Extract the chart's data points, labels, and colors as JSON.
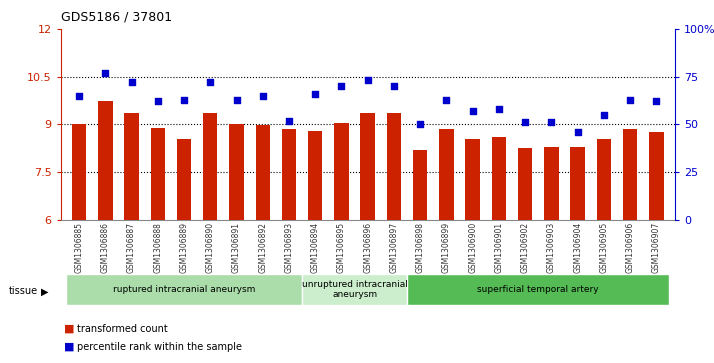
{
  "title": "GDS5186 / 37801",
  "samples": [
    "GSM1306885",
    "GSM1306886",
    "GSM1306887",
    "GSM1306888",
    "GSM1306889",
    "GSM1306890",
    "GSM1306891",
    "GSM1306892",
    "GSM1306893",
    "GSM1306894",
    "GSM1306895",
    "GSM1306896",
    "GSM1306897",
    "GSM1306898",
    "GSM1306899",
    "GSM1306900",
    "GSM1306901",
    "GSM1306902",
    "GSM1306903",
    "GSM1306904",
    "GSM1306905",
    "GSM1306906",
    "GSM1306907"
  ],
  "transformed_count": [
    9.0,
    9.75,
    9.35,
    8.88,
    8.55,
    9.35,
    9.0,
    8.97,
    8.85,
    8.8,
    9.05,
    9.35,
    9.35,
    8.2,
    8.85,
    8.55,
    8.6,
    8.25,
    8.3,
    8.3,
    8.55,
    8.85,
    8.75
  ],
  "percentile_rank": [
    65,
    77,
    72,
    62,
    63,
    72,
    63,
    65,
    52,
    66,
    70,
    73,
    70,
    50,
    63,
    57,
    58,
    51,
    51,
    46,
    55,
    63,
    62
  ],
  "ylim_left": [
    6,
    12
  ],
  "ylim_right": [
    0,
    100
  ],
  "yticks_left": [
    6,
    7.5,
    9,
    10.5,
    12
  ],
  "ytick_labels_left": [
    "6",
    "7.5",
    "9",
    "10.5",
    "12"
  ],
  "yticks_right": [
    0,
    25,
    50,
    75,
    100
  ],
  "ytick_labels_right": [
    "0",
    "25",
    "50",
    "75",
    "100%"
  ],
  "grid_yticks": [
    7.5,
    9,
    10.5
  ],
  "bar_color": "#cc2200",
  "dot_color": "#0000cc",
  "plot_bg_color": "#ffffff",
  "xlabel_bg_color": "#d8d8d8",
  "tissue_groups": [
    {
      "label": "ruptured intracranial aneurysm",
      "start": 0,
      "end": 9,
      "color": "#aaddaa"
    },
    {
      "label": "unruptured intracranial\naneurysm",
      "start": 9,
      "end": 13,
      "color": "#cceecc"
    },
    {
      "label": "superficial temporal artery",
      "start": 13,
      "end": 23,
      "color": "#55bb55"
    }
  ],
  "tissue_label": "tissue",
  "legend_bar_label": "transformed count",
  "legend_dot_label": "percentile rank within the sample",
  "left_tick_color": "#cc2200",
  "right_tick_color": "#0000cc"
}
